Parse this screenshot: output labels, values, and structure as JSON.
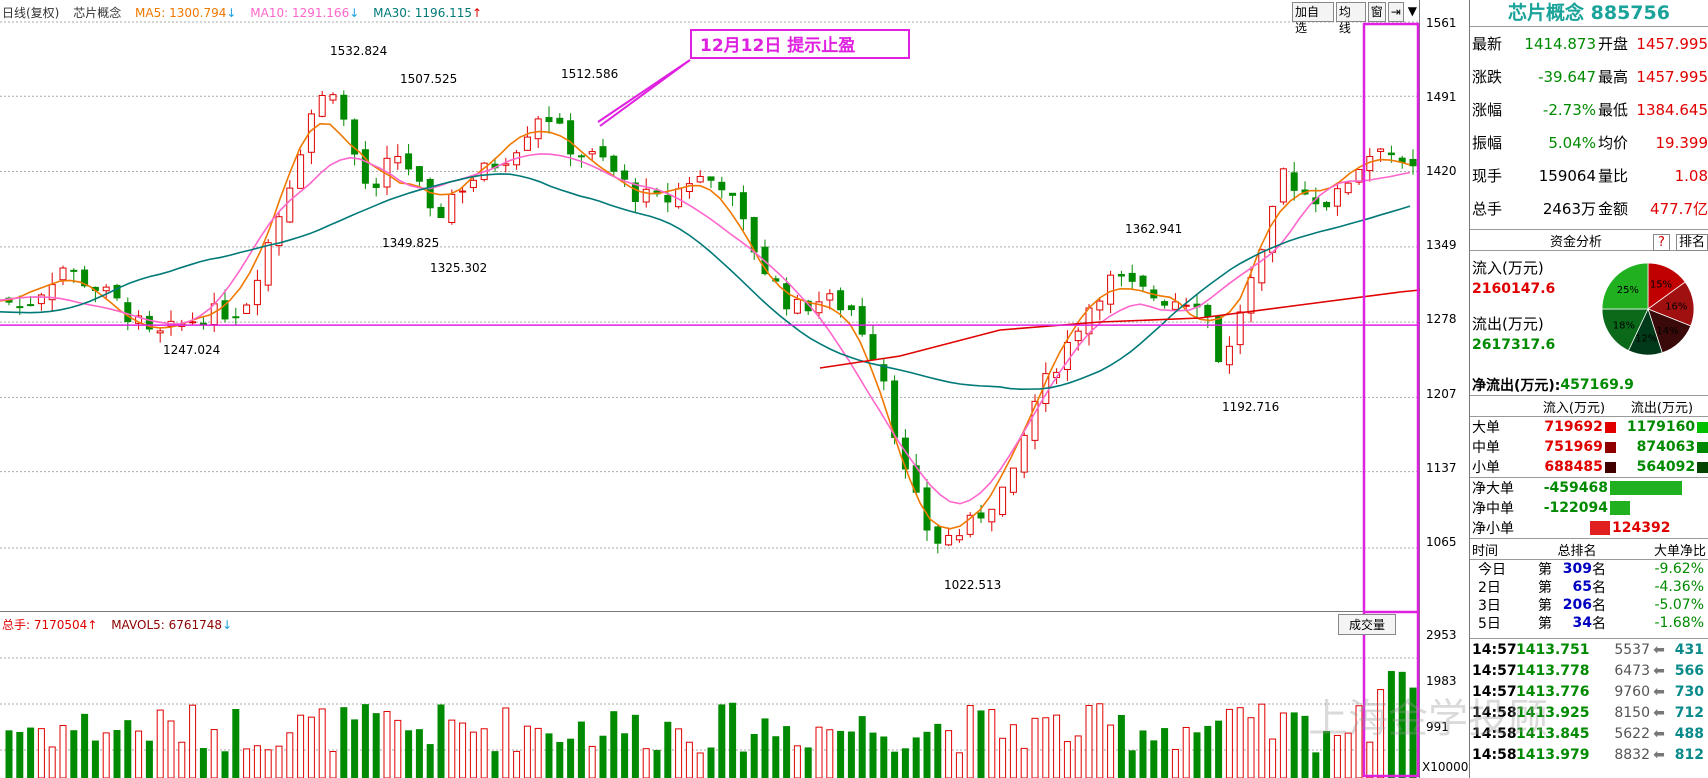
{
  "legend": {
    "period": "日线(复权)",
    "name": "芯片概念",
    "ma5": "MA5: 1300.794",
    "ma5_arrow": "↓",
    "ma10": "MA10: 1291.166",
    "ma10_arrow": "↓",
    "ma30": "MA30: 1196.115",
    "ma30_arrow": "↑"
  },
  "toolbar": [
    "加自选",
    "均线",
    "窗",
    "⇥",
    "▼"
  ],
  "yaxis_price": [
    "1561",
    "1491",
    "1420",
    "1349",
    "1278",
    "1207",
    "1137",
    "1065"
  ],
  "yaxis_vol": [
    "2953",
    "1983",
    "991",
    "X10000"
  ],
  "annotations": {
    "note": "12月12日    提示止盈",
    "high1": "1532.824",
    "high2": "1507.525",
    "high3": "1512.586",
    "low1": "1349.825",
    "low2": "1325.302",
    "low3": "1247.024",
    "high4": "1362.941",
    "low4": "1192.716",
    "low5": "1022.513"
  },
  "volume": {
    "legend_total": "总手: 7170504",
    "legend_total_arrow": "↑",
    "legend_mavol": "MAVOL5: 6761748",
    "legend_mavol_arrow": "↓",
    "label": "成交量"
  },
  "panel": {
    "title": "芯片概念 885756",
    "quote": [
      {
        "k1": "最新",
        "v1": "1414.873",
        "k2": "开盘",
        "v2": "1457.995"
      },
      {
        "k1": "涨跌",
        "v1": "-39.647",
        "k2": "最高",
        "v2": "1457.995"
      },
      {
        "k1": "涨幅",
        "v1": "-2.73%",
        "k2": "最低",
        "v2": "1384.645"
      },
      {
        "k1": "振幅",
        "v1": "5.04%",
        "k2": "均价",
        "v2": "19.399"
      },
      {
        "k1": "现手",
        "v1": "159064",
        "k2": "量比",
        "v2": "1.08"
      },
      {
        "k1": "总手",
        "v1": "2463万",
        "k2": "金额",
        "v2": "477.7亿"
      }
    ],
    "fund_title": "资金分析",
    "fund_q": "?",
    "fund_rank": "排名",
    "inflow_label": "流入(万元)",
    "inflow_value": "2160147.6",
    "outflow_label": "流出(万元)",
    "outflow_value": "2617317.6",
    "net_label": "净流出(万元):",
    "net_value": "457169.9",
    "pie": [
      {
        "label": "15%",
        "color": "#c00000",
        "pct": 15
      },
      {
        "label": "16%",
        "color": "#a01010",
        "pct": 16
      },
      {
        "label": "14%",
        "color": "#3a0a0a",
        "pct": 14
      },
      {
        "label": "12%",
        "color": "#003a1a",
        "pct": 12
      },
      {
        "label": "18%",
        "color": "#0a6a1a",
        "pct": 18
      },
      {
        "label": "25%",
        "color": "#20b020",
        "pct": 25
      }
    ],
    "flow_header": [
      "流入(万元)",
      "流出(万元)"
    ],
    "flow_rows": [
      {
        "label": "大单",
        "in": "719692",
        "out": "1179160",
        "in_color": "#e00000",
        "out_color": "#00c000"
      },
      {
        "label": "中单",
        "in": "751969",
        "out": "874063",
        "in_color": "#900000",
        "out_color": "#008800"
      },
      {
        "label": "小单",
        "in": "688485",
        "out": "564092",
        "in_color": "#400000",
        "out_color": "#004400"
      }
    ],
    "net_rows": [
      {
        "label": "净大单",
        "value": "-459468",
        "bar": 0.9,
        "color": "#20b020"
      },
      {
        "label": "净中单",
        "value": "-122094",
        "bar": 0.25,
        "color": "#20b020"
      },
      {
        "label": "净小单",
        "value": "124392",
        "bar": 0.25,
        "color": "#e02020"
      }
    ],
    "rank_header": [
      "时间",
      "总排名",
      "大单净比"
    ],
    "rank_rows": [
      {
        "t": "今日",
        "pre": "第",
        "n": "309",
        "suf": "名",
        "p": "-9.62%"
      },
      {
        "t": "2日",
        "pre": "第",
        "n": "65",
        "suf": "名",
        "p": "-4.36%"
      },
      {
        "t": "3日",
        "pre": "第",
        "n": "206",
        "suf": "名",
        "p": "-5.07%"
      },
      {
        "t": "5日",
        "pre": "第",
        "n": "34",
        "suf": "名",
        "p": "-1.68%"
      }
    ],
    "ticks": [
      {
        "time": "14:57",
        "price": "1413.751",
        "vol": "5537",
        "arrow": "⬅",
        "hand": "431"
      },
      {
        "time": "14:57",
        "price": "1413.778",
        "vol": "6473",
        "arrow": "⬅",
        "hand": "566"
      },
      {
        "time": "14:57",
        "price": "1413.776",
        "vol": "9760",
        "arrow": "⬅",
        "hand": "730"
      },
      {
        "time": "14:58",
        "price": "1413.925",
        "vol": "8150",
        "arrow": "⬅",
        "hand": "712"
      },
      {
        "time": "14:58",
        "price": "1413.845",
        "vol": "5622",
        "arrow": "⬅",
        "hand": "488"
      },
      {
        "time": "14:58",
        "price": "1413.979",
        "vol": "8832",
        "arrow": "⬅",
        "hand": "812"
      }
    ]
  },
  "watermark": "上海金学投顾"
}
